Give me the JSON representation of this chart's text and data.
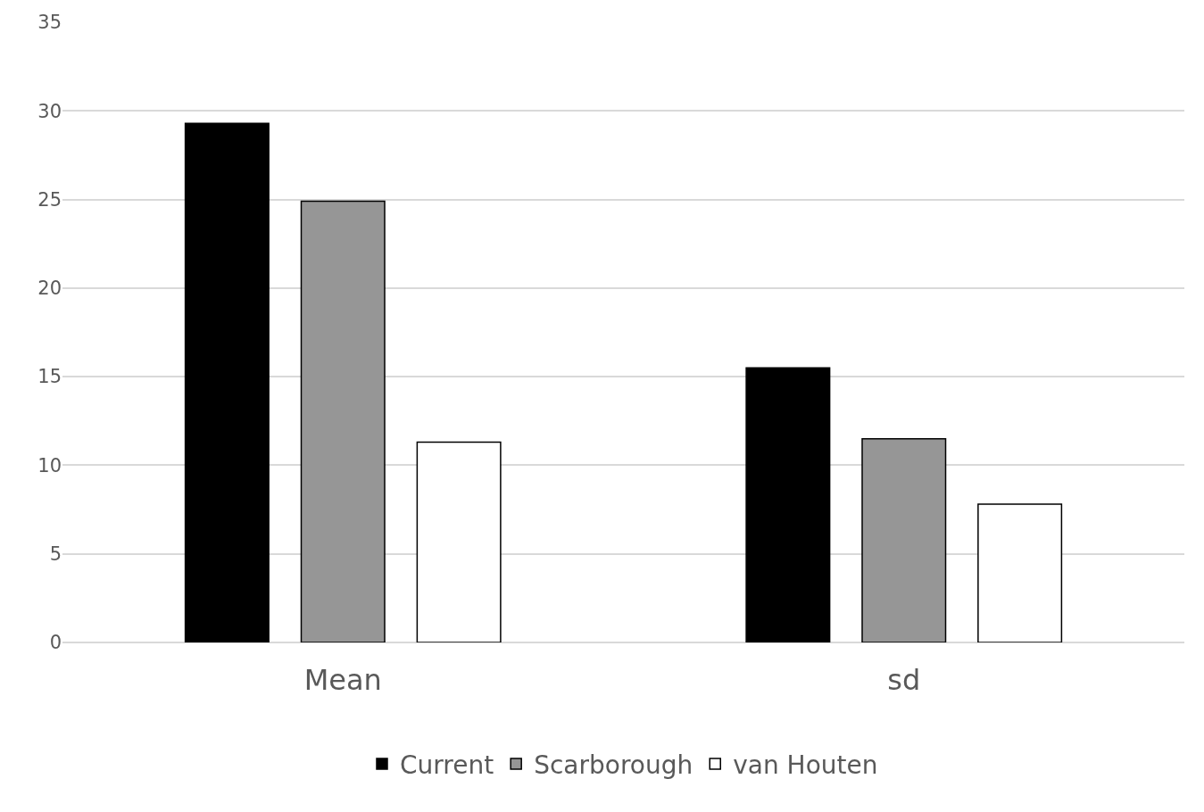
{
  "chart_data": {
    "type": "bar",
    "categories": [
      "Mean",
      "sd"
    ],
    "series": [
      {
        "name": "Current",
        "color": "#000000",
        "values": [
          29.3,
          15.5
        ]
      },
      {
        "name": "Scarborough",
        "color": "#969696",
        "values": [
          24.9,
          11.5
        ]
      },
      {
        "name": "van Houten",
        "color": "#ffffff",
        "values": [
          11.3,
          7.8
        ]
      }
    ],
    "ylim": [
      0,
      35
    ],
    "yticks": [
      0,
      5,
      10,
      15,
      20,
      25,
      30,
      35
    ],
    "grid": "y",
    "legend": "bottom"
  }
}
